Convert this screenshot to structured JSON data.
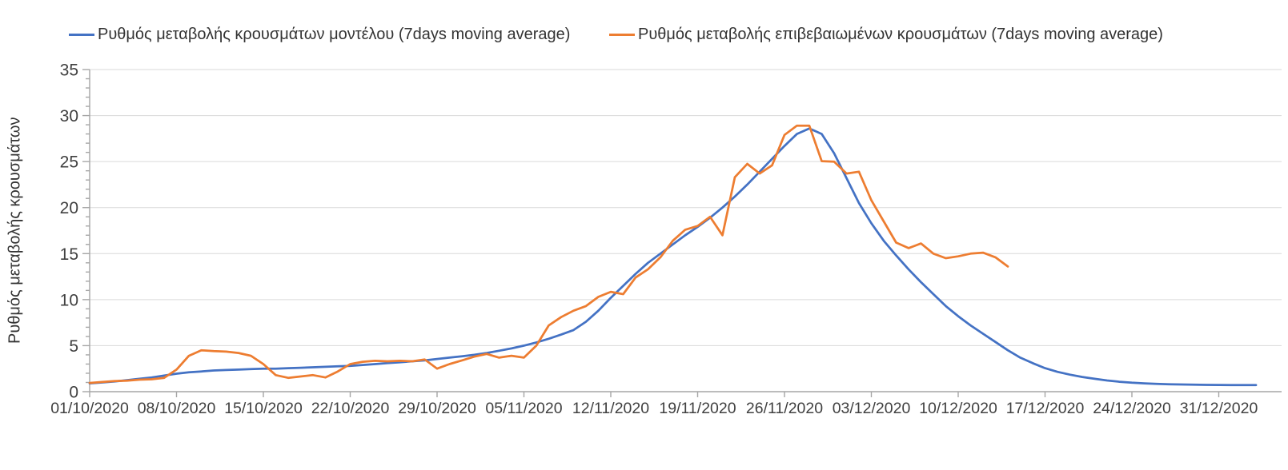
{
  "chart_data": {
    "type": "line",
    "title": "",
    "ylabel": "Ρυθμός μεταβολής κρουσμάτων",
    "xlabel": "",
    "ylim": [
      0,
      35
    ],
    "y_major_step": 5,
    "y_minor_step": 1,
    "y_tick_labels": [
      "0",
      "5",
      "10",
      "15",
      "20",
      "25",
      "30",
      "35"
    ],
    "grid": "horizontal gridlines at every 5 units",
    "legend_position": "top",
    "x_days_per_tick": 7,
    "x_tick_labels": [
      "01/10/2020",
      "08/10/2020",
      "15/10/2020",
      "22/10/2020",
      "29/10/2020",
      "05/11/2020",
      "12/11/2020",
      "19/11/2020",
      "26/11/2020",
      "03/12/2020",
      "10/12/2020",
      "17/12/2020",
      "24/12/2020",
      "31/12/2020"
    ],
    "colors": {
      "axis": "#a6a6a6",
      "gridline": "#d9d9d9",
      "tick_text": "#404040"
    },
    "series": [
      {
        "name": "Ρυθμός μεταβολής κρουσμάτων μοντέλου (7days moving average)",
        "color": "#4472c4",
        "start_date": "01/10/2020",
        "values": [
          0.9,
          1.0,
          1.1,
          1.25,
          1.4,
          1.55,
          1.75,
          1.95,
          2.1,
          2.2,
          2.3,
          2.35,
          2.4,
          2.45,
          2.5,
          2.5,
          2.55,
          2.6,
          2.65,
          2.7,
          2.75,
          2.8,
          2.9,
          3.0,
          3.1,
          3.2,
          3.3,
          3.4,
          3.55,
          3.7,
          3.85,
          4.0,
          4.2,
          4.45,
          4.7,
          5.0,
          5.35,
          5.75,
          6.2,
          6.7,
          7.6,
          8.8,
          10.2,
          11.5,
          12.8,
          14.0,
          15.0,
          16.0,
          17.0,
          17.9,
          18.9,
          20.0,
          21.2,
          22.5,
          23.9,
          25.3,
          26.7,
          28.0,
          28.6,
          28.0,
          25.9,
          23.2,
          20.5,
          18.3,
          16.4,
          14.8,
          13.3,
          11.9,
          10.6,
          9.3,
          8.2,
          7.2,
          6.3,
          5.4,
          4.5,
          3.7,
          3.1,
          2.55,
          2.15,
          1.85,
          1.6,
          1.4,
          1.22,
          1.08,
          0.97,
          0.9,
          0.85,
          0.81,
          0.78,
          0.76,
          0.74,
          0.73,
          0.72,
          0.72,
          0.72
        ]
      },
      {
        "name": "Ρυθμός μεταβολής επιβεβαιωμένων κρουσμάτων (7days moving average)",
        "color": "#ed7d31",
        "start_date": "01/10/2020",
        "values": [
          0.95,
          1.05,
          1.15,
          1.2,
          1.3,
          1.35,
          1.5,
          2.4,
          3.9,
          4.5,
          4.4,
          4.35,
          4.2,
          3.9,
          3.0,
          1.8,
          1.5,
          1.65,
          1.8,
          1.55,
          2.2,
          3.0,
          3.25,
          3.35,
          3.3,
          3.35,
          3.3,
          3.5,
          2.5,
          3.0,
          3.4,
          3.8,
          4.1,
          3.7,
          3.9,
          3.7,
          5.0,
          7.2,
          8.1,
          8.8,
          9.3,
          10.3,
          10.85,
          10.6,
          12.4,
          13.3,
          14.6,
          16.4,
          17.6,
          18.0,
          19.0,
          17.0,
          23.3,
          24.75,
          23.7,
          24.6,
          27.9,
          28.9,
          28.9,
          25.05,
          25.0,
          23.7,
          23.9,
          20.8,
          18.5,
          16.2,
          15.6,
          16.1,
          15.0,
          14.5,
          14.7,
          15.0,
          15.1,
          14.6,
          13.6
        ]
      }
    ]
  }
}
